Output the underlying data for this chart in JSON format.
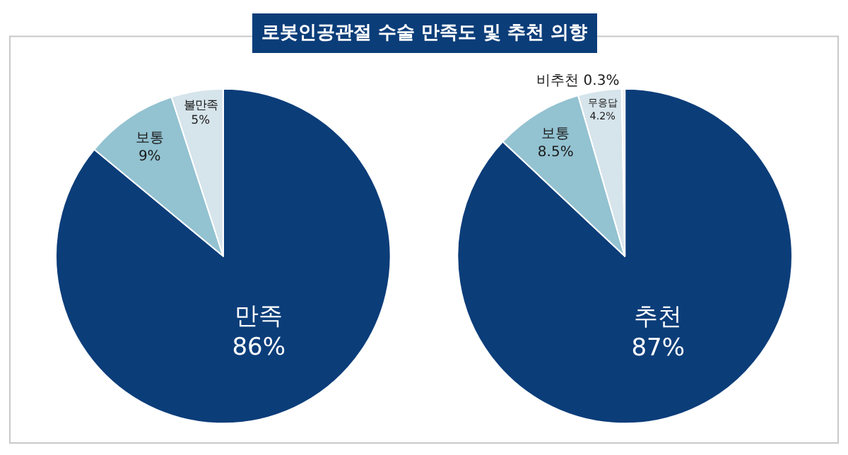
{
  "chart_data": [
    {
      "type": "pie",
      "title": "로봇인공관절 수술 만족도 및 추천 의향",
      "categories": [
        "만족",
        "보통",
        "불만족"
      ],
      "values": [
        86,
        9,
        5
      ],
      "value_labels": [
        "86%",
        "9%",
        "5%"
      ],
      "colors": [
        "#0b3d79",
        "#93c2d1",
        "#d6e4eb"
      ]
    },
    {
      "type": "pie",
      "categories": [
        "추천",
        "보통",
        "무응답",
        "비추천"
      ],
      "values": [
        87,
        8.5,
        4.2,
        0.3
      ],
      "value_labels": [
        "87%",
        "8.5%",
        "4.2%",
        "0.3%"
      ],
      "colors": [
        "#0b3d79",
        "#93c2d1",
        "#d6e4eb",
        "#f2f2f2"
      ]
    }
  ]
}
